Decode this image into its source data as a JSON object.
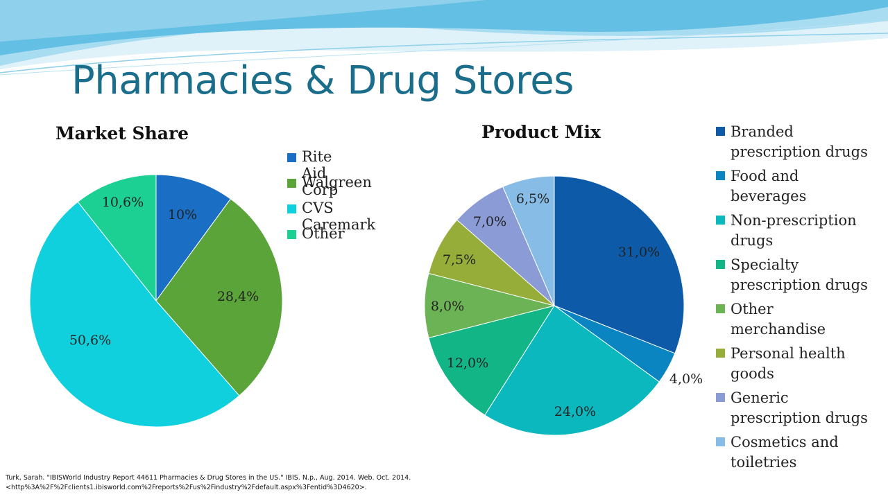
{
  "slide_title": "Pharmacies & Drug Stores",
  "theme_colors": {
    "title": "#1a6e8c",
    "wave_light": "#bfe4f3",
    "wave_mid": "#7cc8e6",
    "wave_dark": "#4bb0d8"
  },
  "chart_data": [
    {
      "type": "pie",
      "title": "Market Share",
      "categories": [
        "Rite Aid Corp",
        "Walgreen",
        "CVS Caremark",
        "Other"
      ],
      "values": [
        10,
        28.4,
        50.6,
        10.6
      ],
      "labels": [
        "10%",
        "28,4%",
        "50,6%",
        "10,6%"
      ],
      "colors": [
        "#1a6fc4",
        "#5aa43a",
        "#0fd0dc",
        "#1ccf92"
      ],
      "legend": "right"
    },
    {
      "type": "pie",
      "title": "Product Mix",
      "categories": [
        "Branded prescription drugs",
        "Food and beverages",
        "Non-prescription drugs",
        "Specialty prescription drugs",
        "Other merchandise",
        "Personal health goods",
        "Generic prescription drugs",
        "Cosmetics and toiletries"
      ],
      "legend_lines": [
        [
          "Branded",
          "prescription drugs"
        ],
        [
          "Food and",
          "beverages"
        ],
        [
          "Non-prescription",
          "drugs"
        ],
        [
          "Specialty",
          "prescription drugs"
        ],
        [
          "Other",
          "merchandise"
        ],
        [
          "Personal health",
          "goods"
        ],
        [
          "Generic",
          "prescription drugs"
        ],
        [
          "Cosmetics and",
          "toiletries"
        ]
      ],
      "values": [
        31.0,
        4.0,
        24.0,
        12.0,
        8.0,
        7.5,
        7.0,
        6.5
      ],
      "labels": [
        "31,0%",
        "4,0%",
        "24,0%",
        "12,0%",
        "8,0%",
        "7,5%",
        "7,0%",
        "6,5%"
      ],
      "colors": [
        "#0d5ba8",
        "#0b84c2",
        "#0ab8be",
        "#12b586",
        "#6cb356",
        "#96ad3a",
        "#8a9bd6",
        "#86bce6"
      ],
      "legend": "right"
    }
  ],
  "source": {
    "line1": "Turk, Sarah. \"IBISWorld Industry Report 44611 Pharmacies & Drug Stores in the US.\" IBIS. N.p., Aug. 2014. Web. Oct. 2014.",
    "line2": "<http%3A%2F%2Fclients1.ibisworld.com%2Freports%2Fus%2Findustry%2Fdefault.aspx%3Fentid%3D4620>."
  }
}
